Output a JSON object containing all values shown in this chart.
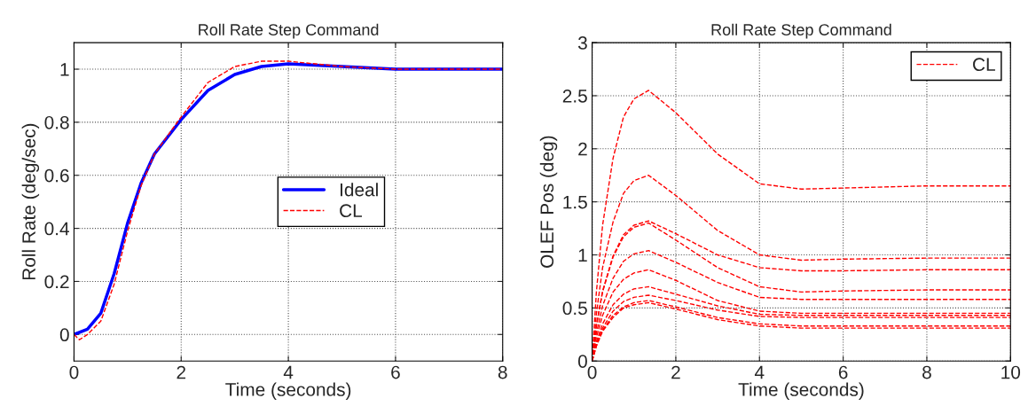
{
  "chart_data": [
    {
      "type": "line",
      "title": "Roll Rate Step Command",
      "xlabel": "Time (seconds)",
      "ylabel": "Roll Rate (deg/sec)",
      "xlim": [
        0,
        8
      ],
      "xticks": [
        0,
        2,
        4,
        6,
        8
      ],
      "ylim": [
        -0.1,
        1.1
      ],
      "yticks": [
        0,
        0.2,
        0.4,
        0.6,
        0.8,
        1
      ],
      "grid": true,
      "legend": "center",
      "series": [
        {
          "name": "Ideal",
          "color": "#0000ff",
          "line_style": "solid",
          "x": [
            0,
            0.25,
            0.5,
            0.75,
            1,
            1.25,
            1.5,
            2,
            2.5,
            3,
            3.5,
            4,
            5,
            6,
            8
          ],
          "values": [
            0,
            0.02,
            0.08,
            0.23,
            0.42,
            0.57,
            0.68,
            0.81,
            0.92,
            0.98,
            1.01,
            1.02,
            1.01,
            1.0,
            1.0
          ]
        },
        {
          "name": "CL",
          "color": "#ff0000",
          "line_style": "dashed",
          "x": [
            0,
            0.1,
            0.25,
            0.5,
            0.75,
            1,
            1.25,
            1.5,
            2,
            2.5,
            3,
            3.5,
            4,
            4.5,
            5,
            6,
            8
          ],
          "values": [
            0,
            -0.02,
            0.0,
            0.05,
            0.19,
            0.39,
            0.56,
            0.68,
            0.82,
            0.95,
            1.01,
            1.03,
            1.03,
            1.02,
            1.01,
            1.0,
            1.0
          ]
        }
      ]
    },
    {
      "type": "line",
      "title": "Roll Rate Step Command",
      "xlabel": "Time (seconds)",
      "ylabel": "OLEF Pos (deg)",
      "xlim": [
        0,
        10
      ],
      "xticks": [
        0,
        2,
        4,
        6,
        8,
        10
      ],
      "ylim": [
        0,
        3
      ],
      "yticks": [
        0,
        0.5,
        1,
        1.5,
        2,
        2.5,
        3
      ],
      "grid": true,
      "legend": "top right",
      "x": [
        0,
        0.1,
        0.25,
        0.5,
        0.75,
        1,
        1.35,
        2,
        3,
        4,
        5,
        6,
        8,
        10
      ],
      "series": [
        {
          "name": "CL",
          "color": "#ff0000",
          "line_style": "dashed",
          "values": [
            0,
            0.64,
            1.28,
            1.91,
            2.3,
            2.47,
            2.55,
            2.34,
            1.95,
            1.67,
            1.62,
            1.63,
            1.65,
            1.65
          ]
        },
        {
          "color": "#ff0000",
          "line_style": "dashed",
          "values": [
            0,
            0.44,
            0.88,
            1.31,
            1.58,
            1.7,
            1.75,
            1.56,
            1.23,
            1.0,
            0.95,
            0.96,
            0.97,
            0.97
          ]
        },
        {
          "color": "#ff0000",
          "line_style": "dashed",
          "values": [
            0,
            0.33,
            0.66,
            0.99,
            1.19,
            1.28,
            1.32,
            1.2,
            1.0,
            0.88,
            0.85,
            0.85,
            0.86,
            0.86
          ]
        },
        {
          "color": "#ff0000",
          "line_style": "dashed",
          "values": [
            0,
            0.33,
            0.65,
            0.98,
            1.17,
            1.26,
            1.3,
            1.14,
            0.88,
            0.7,
            0.65,
            0.66,
            0.67,
            0.67
          ]
        },
        {
          "color": "#ff0000",
          "line_style": "dashed",
          "values": [
            0,
            0.26,
            0.52,
            0.78,
            0.94,
            1.01,
            1.04,
            0.93,
            0.74,
            0.6,
            0.58,
            0.58,
            0.58,
            0.58
          ]
        },
        {
          "color": "#ff0000",
          "line_style": "dashed",
          "values": [
            0,
            0.22,
            0.43,
            0.65,
            0.77,
            0.83,
            0.86,
            0.76,
            0.57,
            0.47,
            0.45,
            0.45,
            0.45,
            0.45
          ]
        },
        {
          "color": "#ff0000",
          "line_style": "dashed",
          "values": [
            0,
            0.18,
            0.35,
            0.53,
            0.63,
            0.68,
            0.7,
            0.63,
            0.52,
            0.44,
            0.43,
            0.43,
            0.43,
            0.43
          ]
        },
        {
          "color": "#ff0000",
          "line_style": "dashed",
          "values": [
            0,
            0.16,
            0.31,
            0.47,
            0.56,
            0.6,
            0.62,
            0.57,
            0.48,
            0.42,
            0.41,
            0.41,
            0.41,
            0.41
          ]
        },
        {
          "color": "#ff0000",
          "line_style": "dashed",
          "values": [
            0,
            0.14,
            0.29,
            0.43,
            0.51,
            0.55,
            0.57,
            0.51,
            0.41,
            0.35,
            0.33,
            0.33,
            0.33,
            0.33
          ]
        },
        {
          "color": "#ff0000",
          "line_style": "dashed",
          "values": [
            0,
            0.14,
            0.28,
            0.41,
            0.5,
            0.53,
            0.55,
            0.49,
            0.39,
            0.33,
            0.31,
            0.31,
            0.31,
            0.31
          ]
        }
      ]
    }
  ]
}
